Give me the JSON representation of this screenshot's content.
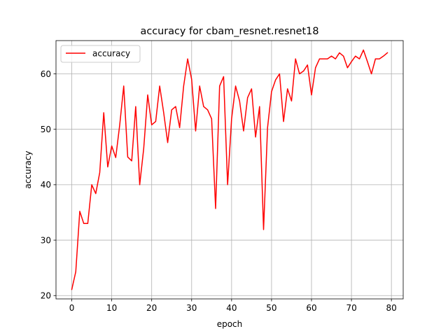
{
  "chart_data": {
    "type": "line",
    "title": "accuracy for cbam_resnet.resnet18",
    "xlabel": "epoch",
    "ylabel": "accuracy",
    "xlim": [
      -3.95,
      82.95
    ],
    "ylim": [
      19.4,
      66.0
    ],
    "xticks": [
      0,
      10,
      20,
      30,
      40,
      50,
      60,
      70,
      80
    ],
    "yticks": [
      20,
      30,
      40,
      50,
      60
    ],
    "grid": true,
    "legend": {
      "position": "top-left"
    },
    "series": [
      {
        "name": "accuracy",
        "color": "#ff0000",
        "x": [
          0,
          1,
          2,
          3,
          4,
          5,
          6,
          7,
          8,
          9,
          10,
          11,
          12,
          13,
          14,
          15,
          16,
          17,
          18,
          19,
          20,
          21,
          22,
          23,
          24,
          25,
          26,
          27,
          28,
          29,
          30,
          31,
          32,
          33,
          34,
          35,
          36,
          37,
          38,
          39,
          40,
          41,
          42,
          43,
          44,
          45,
          46,
          47,
          48,
          49,
          50,
          51,
          52,
          53,
          54,
          55,
          56,
          57,
          58,
          59,
          60,
          61,
          62,
          63,
          64,
          65,
          66,
          67,
          68,
          69,
          70,
          71,
          72,
          73,
          74,
          75,
          76,
          77,
          78,
          79
        ],
        "values": [
          21.1,
          24.3,
          35.2,
          33.0,
          33.0,
          40.0,
          38.4,
          42.2,
          53.0,
          43.2,
          47.0,
          44.9,
          50.8,
          57.8,
          45.0,
          44.3,
          54.1,
          40.0,
          46.5,
          56.2,
          50.8,
          51.4,
          57.8,
          53.0,
          47.6,
          53.5,
          54.1,
          50.3,
          57.8,
          62.7,
          59.0,
          49.7,
          57.8,
          54.1,
          53.5,
          51.9,
          35.7,
          57.8,
          59.5,
          40.0,
          51.9,
          57.8,
          55.1,
          49.7,
          55.7,
          57.3,
          48.6,
          54.1,
          31.9,
          50.3,
          56.8,
          58.9,
          60.0,
          51.4,
          57.3,
          55.1,
          62.7,
          60.0,
          60.5,
          61.6,
          56.2,
          61.1,
          62.7,
          62.7,
          62.7,
          63.2,
          62.7,
          63.8,
          63.2,
          61.1,
          62.2,
          63.2,
          62.7,
          64.3,
          62.2,
          60.0,
          62.7,
          62.7,
          63.2,
          63.8
        ]
      }
    ]
  }
}
